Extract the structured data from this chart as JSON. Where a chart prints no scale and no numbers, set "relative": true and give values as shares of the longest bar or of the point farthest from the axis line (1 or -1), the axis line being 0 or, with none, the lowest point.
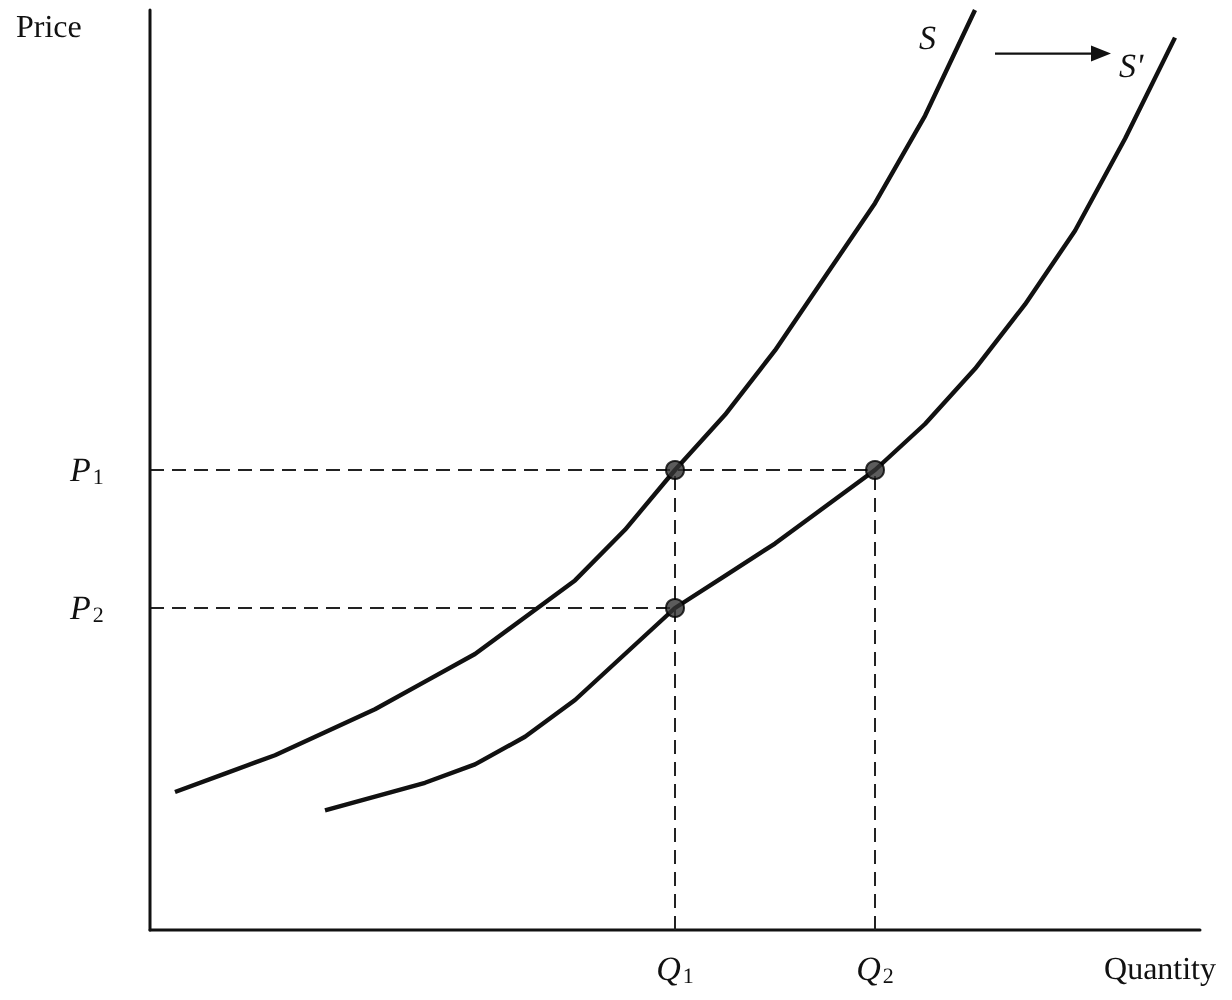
{
  "chart_data": {
    "type": "line",
    "relative": true,
    "xlabel": "Quantity",
    "ylabel": "Price",
    "marker": "none",
    "line_style": "solid",
    "categories": [
      null,
      null,
      null,
      null,
      null,
      null,
      null,
      null,
      null,
      null,
      "Q$_{1}$",
      null,
      null,
      null,
      "Q$_{2}$",
      null,
      null,
      null,
      null,
      null,
      null
    ],
    "series": [
      {
        "name": "S",
        "color": "#111111",
        "values": [
          0.15,
          0.17,
          0.19,
          0.215,
          0.24,
          0.27,
          0.3,
          0.34,
          0.38,
          0.435,
          0.5,
          0.56,
          0.63,
          0.71,
          0.79,
          0.885,
          1.0,
          null,
          null,
          null,
          null
        ]
      },
      {
        "name": "S'",
        "color": "#111111",
        "values": [
          null,
          null,
          null,
          0.13,
          0.145,
          0.16,
          0.18,
          0.21,
          0.25,
          0.3,
          0.35,
          0.385,
          0.42,
          0.46,
          0.5,
          0.55,
          0.61,
          0.68,
          0.76,
          0.86,
          0.97
        ]
      },
      {
        "type": "scatter",
        "marker": "circle",
        "color": "#333333",
        "x": [
          "Q$_{1}$",
          "Q$_{2}$",
          "Q$_{1}$"
        ],
        "values": [
          0.5,
          0.5,
          0.35
        ]
      },
      {
        "type": "line",
        "color": "#222222",
        "line_style": "dashed",
        "x": [
          "Q$_{1}$",
          "Q$_{1}$"
        ],
        "values": [
          0,
          0.5
        ]
      },
      {
        "type": "line",
        "color": "#222222",
        "line_style": "dashed",
        "x": [
          "Q$_{2}$",
          "Q$_{2}$"
        ],
        "values": [
          0,
          0.5
        ]
      }
    ],
    "ref_lines": [
      {
        "axis": "y",
        "value": 0.5,
        "label": "P$_{1}$",
        "line_style": "dashed"
      },
      {
        "axis": "y",
        "value": 0.35,
        "label": "P$_{2}$",
        "line_style": "dashed"
      }
    ]
  }
}
